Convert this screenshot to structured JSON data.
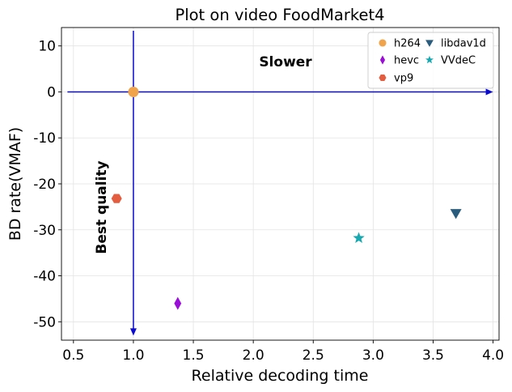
{
  "chart_data": {
    "type": "scatter",
    "title": "Plot on video FoodMarket4",
    "xlabel": "Relative decoding time",
    "ylabel": "BD rate(VMAF)",
    "xlim": [
      0.4,
      4.05
    ],
    "ylim": [
      -54,
      14
    ],
    "x_ticks": [
      0.5,
      1.0,
      1.5,
      2.0,
      2.5,
      3.0,
      3.5,
      4.0
    ],
    "x_tick_labels": [
      "0.5",
      "1.0",
      "1.5",
      "2.0",
      "2.5",
      "3.0",
      "3.5",
      "4.0"
    ],
    "y_ticks": [
      10,
      0,
      -10,
      -20,
      -30,
      -40,
      -50
    ],
    "y_tick_labels": [
      "10",
      "0",
      "-10",
      "-20",
      "-30",
      "-40",
      "-50"
    ],
    "grid": true,
    "legend_position": "top-right",
    "series": [
      {
        "name": "h264",
        "x": 1.0,
        "y": 0.0,
        "marker": "circle",
        "color": "#f0a34a"
      },
      {
        "name": "hevc",
        "x": 1.37,
        "y": -46.0,
        "marker": "thin_diamond",
        "color": "#9a0fd8"
      },
      {
        "name": "vp9",
        "x": 0.86,
        "y": -23.2,
        "marker": "hexagon",
        "color": "#e35d40"
      },
      {
        "name": "libdav1d",
        "x": 3.69,
        "y": -26.4,
        "marker": "triangle_down",
        "color": "#2a5d7d"
      },
      {
        "name": "VVdeC",
        "x": 2.88,
        "y": -31.8,
        "marker": "star",
        "color": "#17a8b0"
      }
    ],
    "annotations": [
      {
        "text": "Slower",
        "orientation": "horizontal"
      },
      {
        "text": "Best quality",
        "orientation": "vertical"
      }
    ],
    "arrow_color": "#0a0ad0"
  }
}
